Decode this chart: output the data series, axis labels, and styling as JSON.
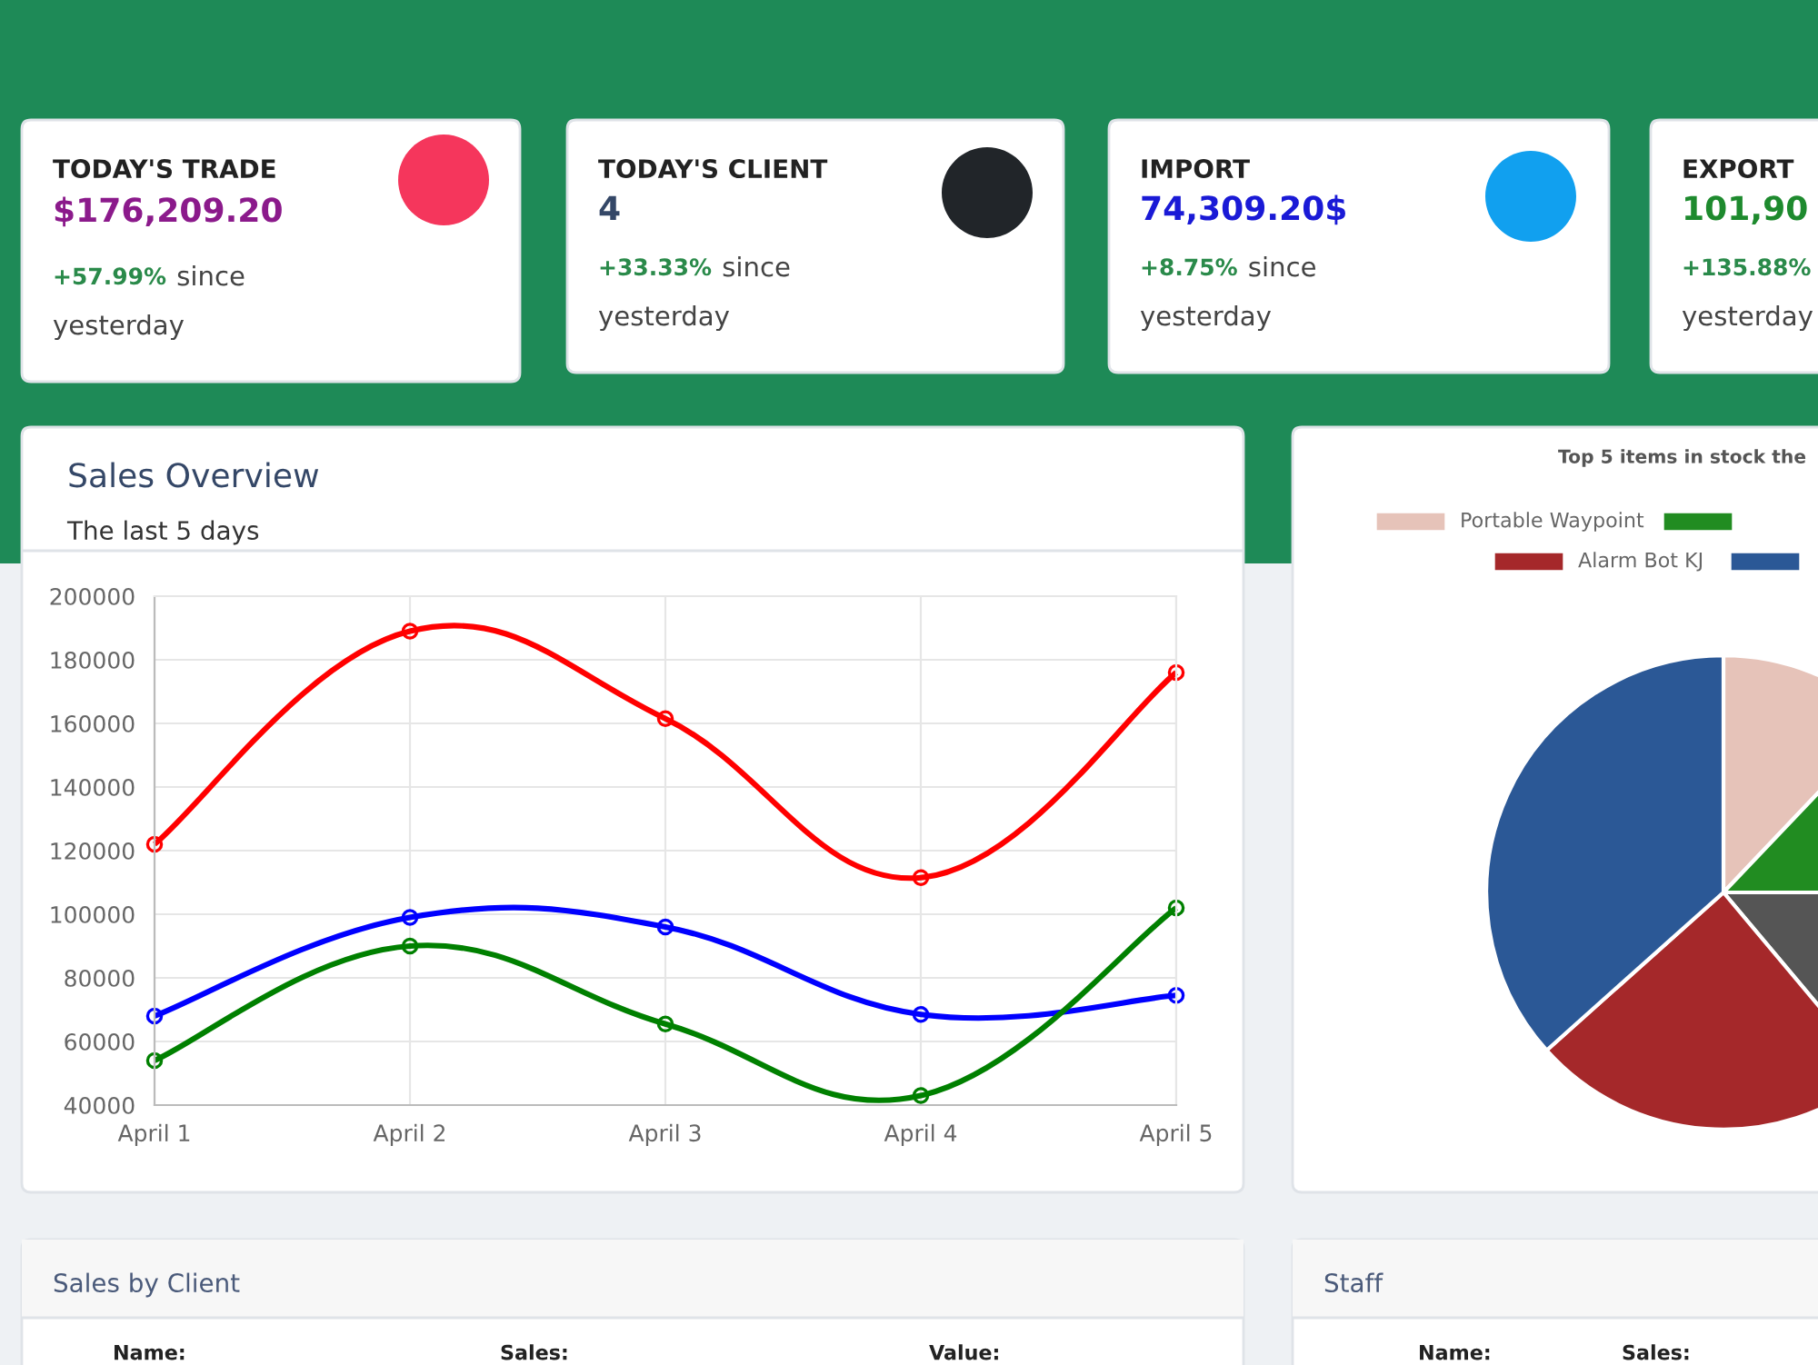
{
  "chart_data": [
    {
      "type": "other",
      "title": "TODAY'S TRADE",
      "color": "#8b1a8b",
      "annotations": [
        "$176,209.20",
        "+57.99%",
        "since",
        "yesterday"
      ]
    },
    {
      "type": "other",
      "title": "TODAY'S CLIENT",
      "color": "#344767",
      "annotations": [
        "4",
        "+33.33%",
        "since",
        "yesterday"
      ]
    },
    {
      "type": "other",
      "title": "IMPORT",
      "color": "#1a1ad6",
      "annotations": [
        "74,309.20$",
        "+8.75%",
        "since",
        "yesterday"
      ]
    },
    {
      "type": "other",
      "title": "EXPORT",
      "color": "#1e8a2e",
      "annotations": [
        "101,90",
        "+135.88%",
        "yesterday"
      ]
    },
    {
      "type": "line",
      "title": "Sales Overview",
      "subtitle": "The last 5 days",
      "categories": [
        "April 1",
        "April 2",
        "April 3",
        "April 4",
        "April 5"
      ],
      "series": [
        {
          "color": "#ff0000",
          "values": [
            122000,
            189000,
            161500,
            111500,
            176000
          ]
        },
        {
          "color": "#0000ff",
          "values": [
            68000,
            99000,
            96000,
            68500,
            74500
          ]
        },
        {
          "color": "#008000",
          "values": [
            54000,
            90000,
            65500,
            43000,
            102000
          ]
        }
      ],
      "ylim": [
        40000,
        200000
      ],
      "yticks": [
        40000,
        60000,
        80000,
        100000,
        120000,
        140000,
        160000,
        180000,
        200000
      ],
      "grid": true,
      "marker": "circle",
      "line_style": "solid"
    },
    {
      "type": "pie",
      "title": "Top 5 items in stock the",
      "categories": [
        "Portable Waypoint",
        null,
        null,
        "Alarm Bot KJ",
        null
      ],
      "values": [
        12.1,
        12.9,
        13.9,
        24.5,
        36.6
      ],
      "colors": [
        "#e6c3b9",
        "#218c21",
        "#555555",
        "#a5282a",
        "#2b5896"
      ],
      "legend": "top"
    },
    {
      "type": "other",
      "title": "Sales by Client",
      "annotations": [
        "Name:",
        "Sales:",
        "Value:"
      ]
    },
    {
      "type": "other",
      "title": "Staff",
      "annotations": [
        "Name:",
        "Sales:"
      ]
    }
  ]
}
